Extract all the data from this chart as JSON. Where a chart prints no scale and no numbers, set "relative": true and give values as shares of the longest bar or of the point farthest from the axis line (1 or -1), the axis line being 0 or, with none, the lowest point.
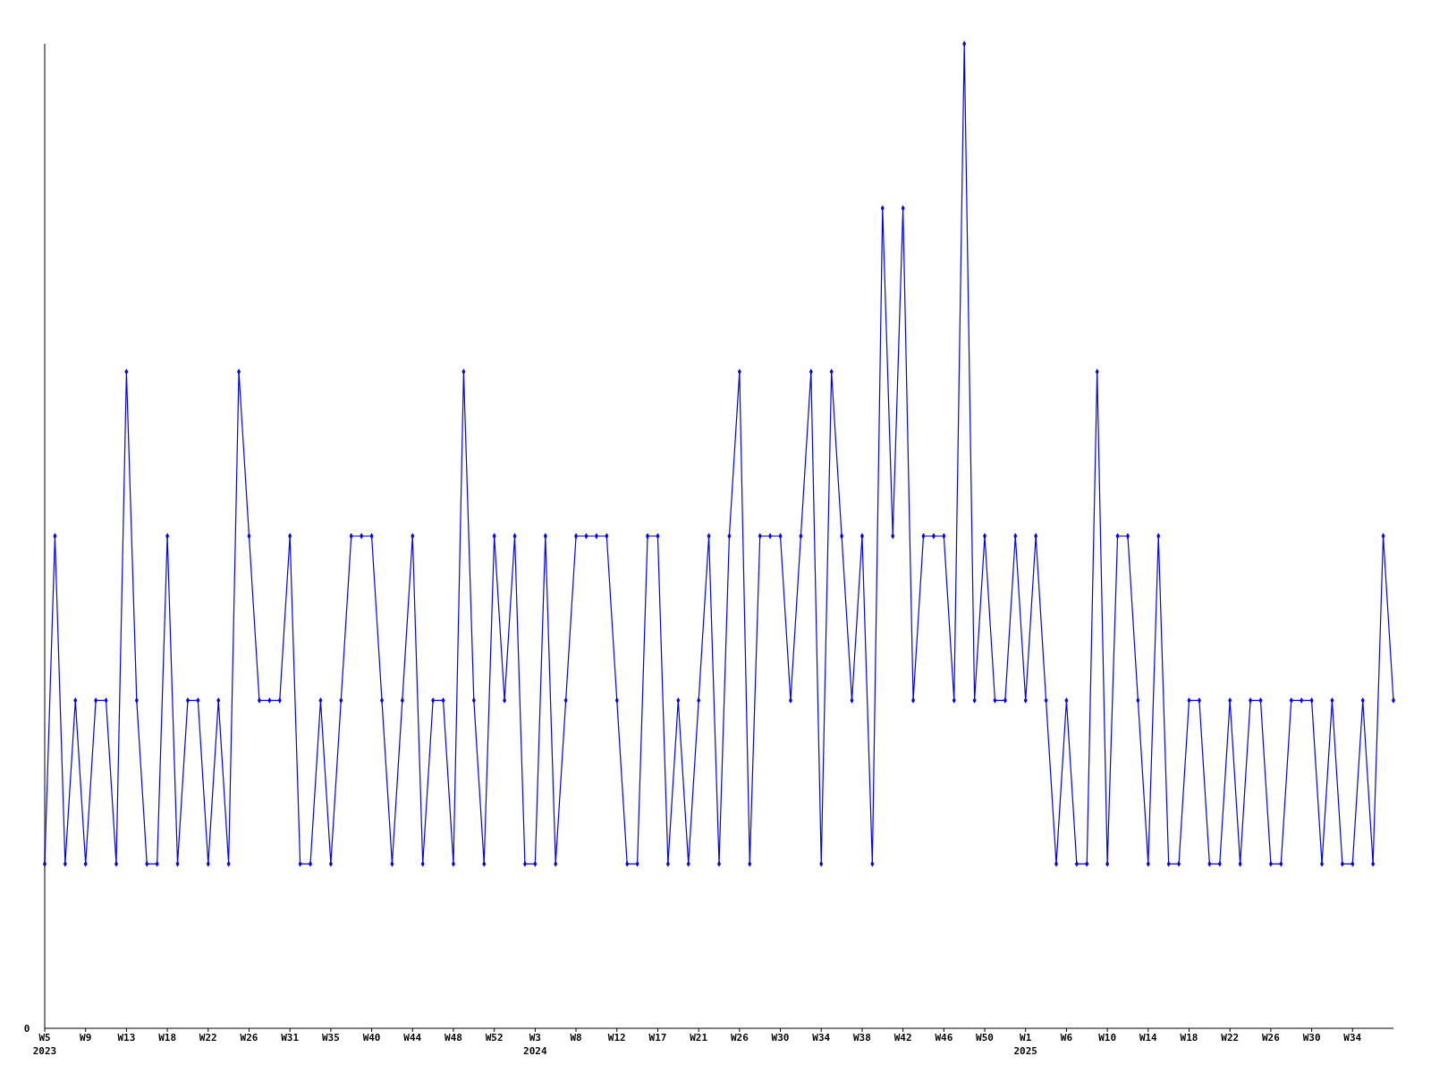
{
  "chart_data": {
    "type": "line",
    "relative": true,
    "marker": "diamond",
    "line_style": "solid",
    "grid": false,
    "annotations": [
      "0"
    ],
    "categories": [
      "W5\n2023",
      null,
      null,
      null,
      "W9",
      null,
      null,
      null,
      "W13",
      null,
      null,
      null,
      "W18",
      null,
      null,
      null,
      "W22",
      null,
      null,
      null,
      "W26",
      null,
      null,
      null,
      "W31",
      null,
      null,
      null,
      "W35",
      null,
      null,
      null,
      "W40",
      null,
      null,
      null,
      "W44",
      null,
      null,
      null,
      "W48",
      null,
      null,
      null,
      "W52",
      null,
      null,
      null,
      "W3\n2024",
      null,
      null,
      null,
      "W8",
      null,
      null,
      null,
      "W12",
      null,
      null,
      null,
      "W17",
      null,
      null,
      null,
      "W21",
      null,
      null,
      null,
      "W26",
      null,
      null,
      null,
      "W30",
      null,
      null,
      null,
      "W34",
      null,
      null,
      null,
      "W38",
      null,
      null,
      null,
      "W42",
      null,
      null,
      null,
      "W46",
      null,
      null,
      null,
      "W50",
      null,
      null,
      null,
      "W1\n2025",
      null,
      null,
      null,
      "W6",
      null,
      null,
      null,
      "W10",
      null,
      null,
      null,
      "W14",
      null,
      null,
      null,
      "W18",
      null,
      null,
      null,
      "W22",
      null,
      null,
      null,
      "W26",
      null,
      null,
      null,
      "W30",
      null,
      null,
      null,
      "W34",
      null,
      null,
      null,
      null
    ],
    "series": [
      {
        "color": "#0000ff",
        "values": [
          0.167,
          0.5,
          0.167,
          0.333,
          0.167,
          0.333,
          0.333,
          0.167,
          0.667,
          0.333,
          0.167,
          0.167,
          0.5,
          0.167,
          0.333,
          0.333,
          0.167,
          0.333,
          0.167,
          0.667,
          0.5,
          0.333,
          0.333,
          0.333,
          0.5,
          0.167,
          0.167,
          0.333,
          0.167,
          0.333,
          0.5,
          0.5,
          0.5,
          0.333,
          0.167,
          0.333,
          0.5,
          0.167,
          0.333,
          0.333,
          0.167,
          0.667,
          0.333,
          0.167,
          0.5,
          0.333,
          0.5,
          0.167,
          0.167,
          0.5,
          0.167,
          0.333,
          0.5,
          0.5,
          0.5,
          0.5,
          0.333,
          0.167,
          0.167,
          0.5,
          0.5,
          0.167,
          0.333,
          0.167,
          0.333,
          0.5,
          0.167,
          0.5,
          0.667,
          0.167,
          0.5,
          0.5,
          0.5,
          0.333,
          0.5,
          0.667,
          0.167,
          0.667,
          0.5,
          0.333,
          0.5,
          0.167,
          0.833,
          0.5,
          0.833,
          0.333,
          0.5,
          0.5,
          0.5,
          0.333,
          1,
          0.333,
          0.5,
          0.333,
          0.333,
          0.5,
          0.333,
          0.5,
          0.333,
          0.167,
          0.333,
          0.167,
          0.167,
          0.667,
          0.167,
          0.5,
          0.5,
          0.333,
          0.167,
          0.5,
          0.167,
          0.167,
          0.333,
          0.333,
          0.167,
          0.167,
          0.333,
          0.167,
          0.333,
          0.333,
          0.167,
          0.167,
          0.333,
          0.333,
          0.333,
          0.167,
          0.333,
          0.167,
          0.167,
          0.333,
          0.167,
          0.5,
          0.333
        ]
      }
    ]
  }
}
